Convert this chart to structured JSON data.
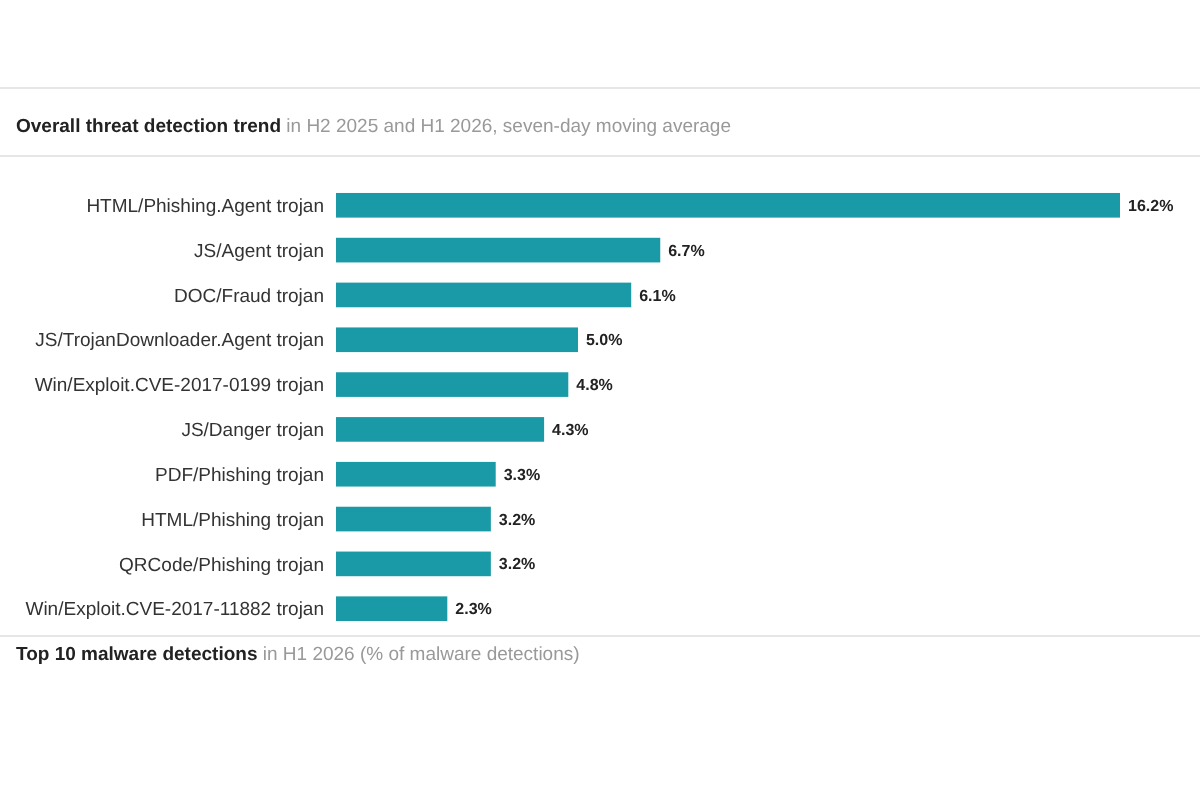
{
  "chart_data": {
    "type": "bar",
    "orientation": "horizontal",
    "title": "Overall threat detection trend",
    "subtitle": "in H2 2025 and H1 2026, seven-day moving average",
    "categories": [
      "HTML/Phishing.Agent trojan",
      "JS/Agent trojan",
      "DOC/Fraud trojan",
      "JS/TrojanDownloader.Agent trojan",
      "Win/Exploit.CVE-2017-0199 trojan",
      "JS/Danger trojan",
      "PDF/Phishing trojan",
      "HTML/Phishing trojan",
      "QRCode/Phishing trojan",
      "Win/Exploit.CVE-2017-11882 trojan"
    ],
    "values": [
      16.2,
      6.7,
      6.1,
      5.0,
      4.8,
      4.3,
      3.3,
      3.2,
      3.2,
      2.3
    ],
    "value_labels": [
      "16.2%",
      "6.7%",
      "6.1%",
      "5.0%",
      "4.8%",
      "4.3%",
      "3.3%",
      "3.2%",
      "3.2%",
      "2.3%"
    ],
    "color": "#1a9aa6",
    "annotations": [
      "Top 10 malware detections",
      "in H1 2026 (% of malware detections)"
    ]
  }
}
